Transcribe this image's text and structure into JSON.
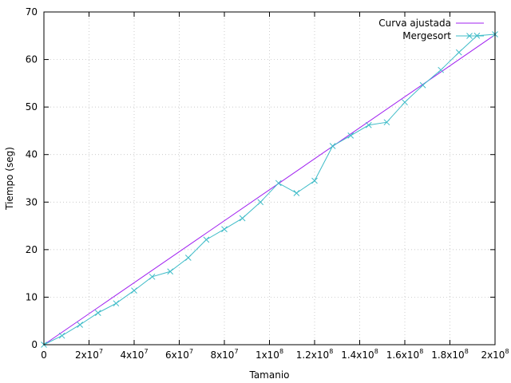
{
  "chart_data": {
    "type": "line",
    "xlabel": "Tamanio",
    "ylabel": "Tiempo (seg)",
    "xlim": [
      0,
      200000000
    ],
    "ylim": [
      0,
      70
    ],
    "grid": true,
    "legend_position": "top-right",
    "x_ticks": [
      {
        "value": 0,
        "base": "0",
        "exp": ""
      },
      {
        "value": 20000000,
        "base": "2x10",
        "exp": "7"
      },
      {
        "value": 40000000,
        "base": "4x10",
        "exp": "7"
      },
      {
        "value": 60000000,
        "base": "6x10",
        "exp": "7"
      },
      {
        "value": 80000000,
        "base": "8x10",
        "exp": "7"
      },
      {
        "value": 100000000,
        "base": "1x10",
        "exp": "8"
      },
      {
        "value": 120000000,
        "base": "1.2x10",
        "exp": "8"
      },
      {
        "value": 140000000,
        "base": "1.4x10",
        "exp": "8"
      },
      {
        "value": 160000000,
        "base": "1.6x10",
        "exp": "8"
      },
      {
        "value": 180000000,
        "base": "1.8x10",
        "exp": "8"
      },
      {
        "value": 200000000,
        "base": "2x10",
        "exp": "8"
      }
    ],
    "y_ticks": [
      0,
      10,
      20,
      30,
      40,
      50,
      60,
      70
    ],
    "series": [
      {
        "name": "Curva ajustada",
        "color": "#a020f0",
        "style": "line",
        "x": [
          0,
          200000000
        ],
        "y": [
          0,
          65.2
        ]
      },
      {
        "name": "Mergesort",
        "color": "#3fbcc8",
        "style": "linespoints",
        "marker": "x",
        "x": [
          0,
          8000000,
          16000000,
          24000000,
          32000000,
          40000000,
          48000000,
          56000000,
          64000000,
          72000000,
          80000000,
          88000000,
          96000000,
          104000000,
          112000000,
          120000000,
          128000000,
          136000000,
          144000000,
          152000000,
          160000000,
          168000000,
          176000000,
          184000000,
          192000000,
          200000000
        ],
        "y": [
          0,
          1.9,
          4.2,
          6.7,
          8.7,
          11.4,
          14.3,
          15.4,
          18.3,
          22.1,
          24.3,
          26.6,
          30.0,
          34.0,
          31.9,
          34.5,
          41.8,
          44.0,
          46.2,
          46.8,
          51.0,
          54.6,
          57.8,
          61.5,
          65.0,
          65.3
        ]
      }
    ]
  }
}
